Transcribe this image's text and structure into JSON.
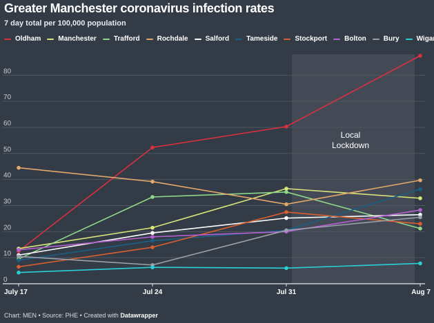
{
  "header": {
    "title": "Greater Manchester coronavirus infection rates",
    "subtitle": "7 day total per 100,000 population"
  },
  "footer": {
    "prefix": "Chart: MEN • Source: PHE • Created with ",
    "tool": "Datawrapper"
  },
  "colors": {
    "background": "#333b46",
    "shade": "#434a55",
    "grid": "#4f5762",
    "axis_text": "#c8cdd4"
  },
  "chart_data": {
    "type": "line",
    "title": "Greater Manchester coronavirus infection rates",
    "subtitle": "7 day total per 100,000 population",
    "x": [
      "July 17",
      "Jul 24",
      "Jul 31",
      "Aug 7"
    ],
    "ylim": [
      0,
      88
    ],
    "yticks": [
      0,
      10,
      20,
      30,
      40,
      50,
      60,
      70,
      80
    ],
    "grid": true,
    "legend_position": "top-left",
    "annotation": {
      "text_lines": [
        "Local",
        "Lockdown"
      ],
      "x_start": "Jul 31",
      "x_end": "Aug 7"
    },
    "series": [
      {
        "name": "Oldham",
        "color": "#d9313e",
        "values": [
          12.5,
          52.3,
          60.3,
          87.5
        ]
      },
      {
        "name": "Manchester",
        "color": "#dbe67a",
        "values": [
          13.5,
          21.5,
          36.5,
          32.8
        ]
      },
      {
        "name": "Trafford",
        "color": "#8fd88a",
        "values": [
          9.5,
          33.3,
          35.2,
          21.2
        ]
      },
      {
        "name": "Rochdale",
        "color": "#e4a96a",
        "values": [
          44.5,
          39.2,
          30.5,
          39.7
        ]
      },
      {
        "name": "Salford",
        "color": "#ffffff",
        "values": [
          11.0,
          19.5,
          25.2,
          26.5
        ]
      },
      {
        "name": "Tameside",
        "color": "#1b5f84",
        "values": [
          9.0,
          16.5,
          20.5,
          36.3
        ]
      },
      {
        "name": "Stockport",
        "color": "#d8602f",
        "values": [
          6.5,
          14.0,
          27.5,
          23.0
        ]
      },
      {
        "name": "Bolton",
        "color": "#b560d0",
        "values": [
          13.0,
          18.0,
          20.0,
          28.3
        ]
      },
      {
        "name": "Bury",
        "color": "#9aa1ab",
        "values": [
          10.5,
          7.2,
          20.5,
          25.5
        ]
      },
      {
        "name": "Wigan",
        "color": "#2ad0d8",
        "values": [
          4.3,
          6.3,
          6.0,
          7.8
        ]
      }
    ]
  }
}
